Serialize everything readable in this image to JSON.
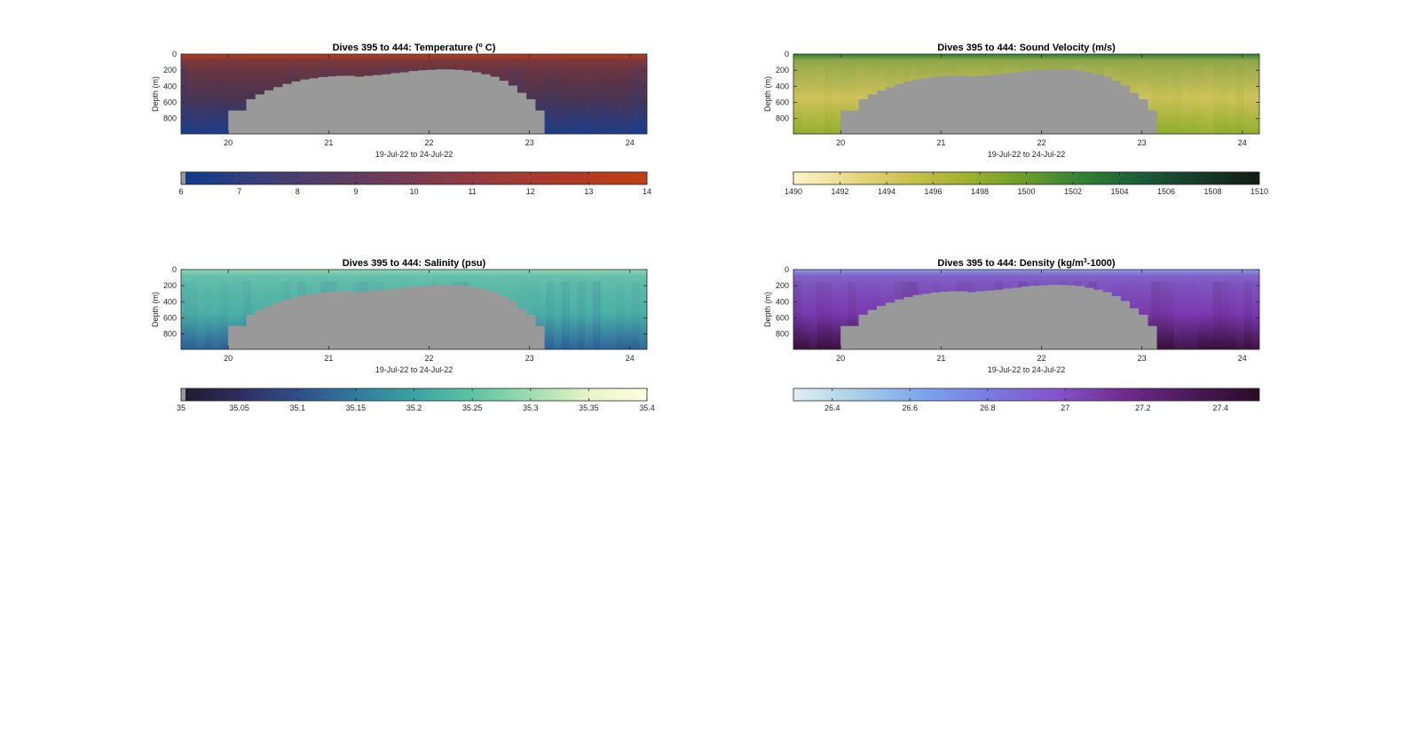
{
  "figure": {
    "background": "#ffffff",
    "seafloor_color": "#999999"
  },
  "chart_data": [
    {
      "type": "heatmap",
      "title": "Dives 395 to 444: Temperature (",
      "title_sup": "o",
      "title_tail": " C)",
      "xlabel": "19-Jul-22 to 24-Jul-22",
      "ylabel": "Depth (m)",
      "xticks": [
        20,
        21,
        22,
        23,
        24
      ],
      "yticks": [
        0,
        200,
        400,
        600,
        800
      ],
      "xlim": [
        19.53,
        24.17
      ],
      "ylim": [
        0,
        990
      ],
      "seafloor_depth_m": [
        700,
        700,
        560,
        500,
        450,
        410,
        370,
        340,
        315,
        300,
        285,
        275,
        270,
        270,
        280,
        270,
        260,
        250,
        235,
        225,
        210,
        200,
        195,
        190,
        190,
        195,
        205,
        225,
        250,
        280,
        330,
        390,
        480,
        560,
        700
      ],
      "colorbar": {
        "ticks": [
          "6",
          "7",
          "8",
          "9",
          "10",
          "11",
          "12",
          "13",
          "14"
        ],
        "range": [
          6,
          14
        ],
        "colors": [
          "#0b3a8f",
          "#3a3e7a",
          "#5a3c65",
          "#7a3a50",
          "#9a3a3a",
          "#b03a25",
          "#c23e12"
        ]
      },
      "field": {
        "surface": "#be3b16",
        "middle": "#4a3552",
        "deep": "#1c3f8e"
      }
    },
    {
      "type": "heatmap",
      "title": "Dives 395 to 444: Sound Velocity (m/s)",
      "xlabel": "19-Jul-22 to 24-Jul-22",
      "ylabel": "Depth (m)",
      "xticks": [
        20,
        21,
        22,
        23,
        24
      ],
      "yticks": [
        0,
        200,
        400,
        600,
        800
      ],
      "xlim": [
        19.53,
        24.17
      ],
      "ylim": [
        0,
        990
      ],
      "seafloor_depth_m": [
        700,
        700,
        560,
        500,
        450,
        410,
        370,
        340,
        315,
        300,
        285,
        275,
        270,
        270,
        280,
        270,
        260,
        250,
        235,
        225,
        210,
        200,
        195,
        190,
        190,
        195,
        205,
        225,
        250,
        280,
        330,
        390,
        480,
        560,
        700
      ],
      "colorbar": {
        "ticks": [
          "1490",
          "1492",
          "1494",
          "1496",
          "1498",
          "1500",
          "1502",
          "1504",
          "1506",
          "1508",
          "1510"
        ],
        "range": [
          1490,
          1510
        ],
        "colors": [
          "#fdf6c8",
          "#e8d886",
          "#c9c04c",
          "#9fb12c",
          "#6a9c2a",
          "#2f7f33",
          "#1a5a37",
          "#153a2a",
          "#101c14"
        ]
      },
      "field": {
        "surface": "#2f7f33",
        "middle": "#cfc25a",
        "deep": "#8fae2c"
      }
    },
    {
      "type": "heatmap",
      "title": "Dives 395 to 444: Salinity (psu)",
      "xlabel": "19-Jul-22 to 24-Jul-22",
      "ylabel": "Depth (m)",
      "xticks": [
        20,
        21,
        22,
        23,
        24
      ],
      "yticks": [
        0,
        200,
        400,
        600,
        800
      ],
      "xlim": [
        19.53,
        24.17
      ],
      "ylim": [
        0,
        990
      ],
      "seafloor_depth_m": [
        700,
        700,
        560,
        500,
        450,
        410,
        370,
        340,
        315,
        300,
        285,
        275,
        270,
        270,
        280,
        270,
        260,
        250,
        235,
        225,
        210,
        200,
        195,
        190,
        190,
        195,
        205,
        225,
        250,
        280,
        330,
        390,
        480,
        560,
        700
      ],
      "colorbar": {
        "ticks": [
          "35",
          "35.05",
          "35.1",
          "35.15",
          "35.2",
          "35.25",
          "35.3",
          "35.35",
          "35.4"
        ],
        "range": [
          35,
          35.4
        ],
        "colors": [
          "#22192b",
          "#2f2d5e",
          "#2f4f8a",
          "#307a9c",
          "#3aa3a2",
          "#5cc3a3",
          "#9fdcb0",
          "#e8f5c8",
          "#fdfde0"
        ]
      },
      "field": {
        "surface": "#8fd8b0",
        "middle": "#4ab0a6",
        "deep": "#2d5e9a"
      }
    },
    {
      "type": "heatmap",
      "title": "Dives 395 to 444: Density (kg/m",
      "title_sup": "3",
      "title_tail": "-1000)",
      "xlabel": "19-Jul-22 to 24-Jul-22",
      "ylabel": "Depth (m)",
      "xticks": [
        20,
        21,
        22,
        23,
        24
      ],
      "yticks": [
        0,
        200,
        400,
        600,
        800
      ],
      "xlim": [
        19.53,
        24.17
      ],
      "ylim": [
        0,
        990
      ],
      "seafloor_depth_m": [
        700,
        700,
        560,
        500,
        450,
        410,
        370,
        340,
        315,
        300,
        285,
        275,
        270,
        270,
        280,
        270,
        260,
        250,
        235,
        225,
        210,
        200,
        195,
        190,
        190,
        195,
        205,
        225,
        250,
        280,
        330,
        390,
        480,
        560,
        700
      ],
      "colorbar": {
        "ticks": [
          "26.4",
          "26.6",
          "26.8",
          "27",
          "27.2",
          "27.4"
        ],
        "range": [
          26.3,
          27.5
        ],
        "colors": [
          "#e0eef0",
          "#a8cce8",
          "#7aa2ea",
          "#7a78e0",
          "#8452c8",
          "#6e2a8c",
          "#4a1a58",
          "#2a0c24"
        ]
      },
      "field": {
        "surface": "#8a9ce8",
        "middle": "#7a3ab0",
        "deep": "#3a0f3a"
      }
    }
  ]
}
